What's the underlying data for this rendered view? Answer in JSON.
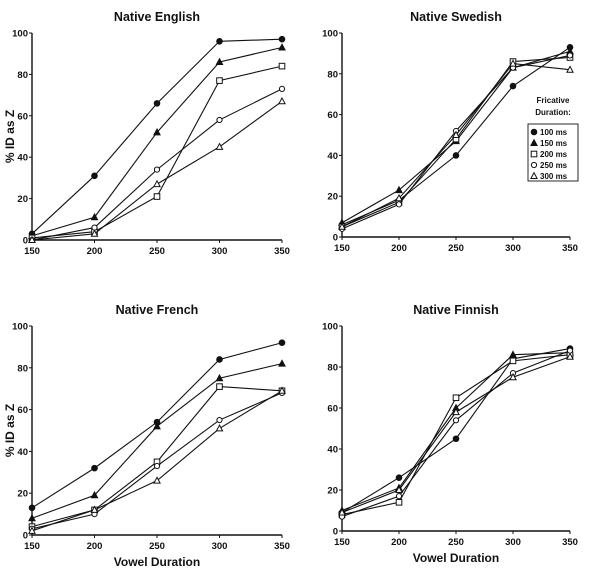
{
  "chart_data": [
    {
      "type": "line",
      "title": "Native English",
      "xlabel": "",
      "ylabel": "% ID as Z",
      "x": [
        150,
        200,
        250,
        300,
        350
      ],
      "xlim": [
        150,
        350
      ],
      "ylim": [
        0,
        100
      ],
      "xticks": [
        "150",
        "200",
        "250",
        "300",
        "350"
      ],
      "yticks": [
        "0",
        "20",
        "40",
        "60",
        "80",
        "100"
      ],
      "grid": false,
      "series": [
        {
          "name": "100 ms",
          "marker": "filled-circle",
          "values": [
            3,
            31,
            66,
            96,
            97
          ]
        },
        {
          "name": "150 ms",
          "marker": "filled-triangle",
          "values": [
            2,
            11,
            52,
            86,
            93
          ]
        },
        {
          "name": "200 ms",
          "marker": "open-square",
          "values": [
            1,
            4,
            21,
            77,
            84
          ]
        },
        {
          "name": "250 ms",
          "marker": "open-circle",
          "values": [
            0,
            6,
            34,
            58,
            73
          ]
        },
        {
          "name": "300 ms",
          "marker": "open-triangle",
          "values": [
            0,
            3,
            27,
            45,
            67
          ]
        }
      ]
    },
    {
      "type": "line",
      "title": "Native Swedish",
      "xlabel": "",
      "ylabel": "",
      "x": [
        150,
        200,
        250,
        300,
        350
      ],
      "xlim": [
        150,
        350
      ],
      "ylim": [
        0,
        100
      ],
      "xticks": [
        "150",
        "200",
        "250",
        "300",
        "350"
      ],
      "yticks": [
        "0",
        "20",
        "40",
        "60",
        "80",
        "100"
      ],
      "grid": false,
      "legend": {
        "title_line1": "Fricative",
        "title_line2": "Duration:",
        "position": "right",
        "entries": [
          "100 ms",
          "150 ms",
          "200 ms",
          "250 ms",
          "300 ms"
        ]
      },
      "series": [
        {
          "name": "100 ms",
          "marker": "filled-circle",
          "values": [
            6,
            18,
            40,
            74,
            93
          ]
        },
        {
          "name": "150 ms",
          "marker": "filled-triangle",
          "values": [
            7,
            23,
            47,
            83,
            91
          ]
        },
        {
          "name": "200 ms",
          "marker": "open-square",
          "values": [
            5,
            17,
            48,
            86,
            88
          ]
        },
        {
          "name": "250 ms",
          "marker": "open-circle",
          "values": [
            4,
            16,
            52,
            83,
            89
          ]
        },
        {
          "name": "300 ms",
          "marker": "open-triangle",
          "values": [
            5,
            19,
            50,
            85,
            82
          ]
        }
      ]
    },
    {
      "type": "line",
      "title": "Native French",
      "xlabel": "Vowel Duration",
      "ylabel": "% ID as Z",
      "x": [
        150,
        200,
        250,
        300,
        350
      ],
      "xlim": [
        150,
        350
      ],
      "ylim": [
        0,
        100
      ],
      "xticks": [
        "150",
        "200",
        "250",
        "300",
        "350"
      ],
      "yticks": [
        "0",
        "20",
        "40",
        "60",
        "80",
        "100"
      ],
      "grid": false,
      "series": [
        {
          "name": "100 ms",
          "marker": "filled-circle",
          "values": [
            13,
            32,
            54,
            84,
            92
          ]
        },
        {
          "name": "150 ms",
          "marker": "filled-triangle",
          "values": [
            8,
            19,
            52,
            75,
            82
          ]
        },
        {
          "name": "200 ms",
          "marker": "open-square",
          "values": [
            4,
            12,
            35,
            71,
            69
          ]
        },
        {
          "name": "250 ms",
          "marker": "open-circle",
          "values": [
            3,
            10,
            33,
            55,
            68
          ]
        },
        {
          "name": "300 ms",
          "marker": "open-triangle",
          "values": [
            2,
            12,
            26,
            51,
            69
          ]
        }
      ]
    },
    {
      "type": "line",
      "title": "Native Finnish",
      "xlabel": "Vowel Duration",
      "ylabel": "",
      "x": [
        150,
        200,
        250,
        300,
        350
      ],
      "xlim": [
        150,
        350
      ],
      "ylim": [
        0,
        100
      ],
      "xticks": [
        "150",
        "200",
        "250",
        "300",
        "350"
      ],
      "yticks": [
        "0",
        "20",
        "40",
        "60",
        "80",
        "100"
      ],
      "grid": false,
      "series": [
        {
          "name": "100 ms",
          "marker": "filled-circle",
          "values": [
            9,
            26,
            45,
            84,
            89
          ]
        },
        {
          "name": "150 ms",
          "marker": "filled-triangle",
          "values": [
            10,
            21,
            60,
            86,
            87
          ]
        },
        {
          "name": "200 ms",
          "marker": "open-square",
          "values": [
            8,
            14,
            65,
            83,
            86
          ]
        },
        {
          "name": "250 ms",
          "marker": "open-circle",
          "values": [
            7,
            17,
            54,
            77,
            88
          ]
        },
        {
          "name": "300 ms",
          "marker": "open-triangle",
          "values": [
            9,
            20,
            58,
            75,
            85
          ]
        }
      ]
    }
  ]
}
